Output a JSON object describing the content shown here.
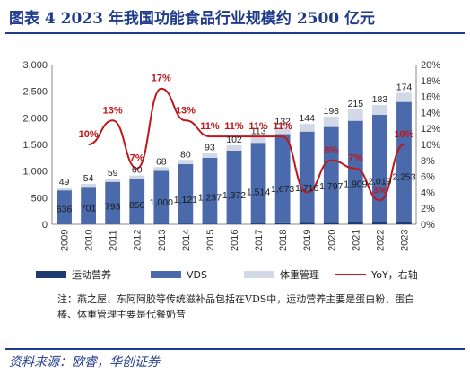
{
  "figure": {
    "title": "图表 4   2023 年我国功能食品行业规模约 2500 亿元",
    "note": "注：燕之屋、东阿阿胶等传统滋补品包括在VDS中，运动营养主要是蛋白粉、蛋白棒、体重管理主要是代餐奶昔",
    "source": "资料来源：欧睿，华创证券"
  },
  "colors": {
    "sports": "#1f3a6e",
    "vds": "#4a6aab",
    "weight": "#d3d8e6",
    "yoy": "#c0171c",
    "title": "#1f3b8c"
  },
  "chart_data": {
    "type": "bar",
    "stacked": true,
    "categories": [
      "2009",
      "2010",
      "2011",
      "2012",
      "2013",
      "2014",
      "2015",
      "2016",
      "2017",
      "2018",
      "2019",
      "2020",
      "2021",
      "2022",
      "2023"
    ],
    "series": [
      {
        "name": "运动营养",
        "values": [
          2,
          3,
          4,
          5,
          6,
          8,
          10,
          12,
          16,
          20,
          25,
          30,
          35,
          40,
          45
        ]
      },
      {
        "name": "VDS",
        "values": [
          636,
          701,
          793,
          850,
          1000,
          1121,
          1237,
          1372,
          1514,
          1673,
          1716,
          1797,
          1909,
          2019,
          2253
        ]
      },
      {
        "name": "体重管理",
        "values": [
          49,
          54,
          59,
          60,
          68,
          80,
          93,
          102,
          113,
          132,
          144,
          198,
          215,
          183,
          174
        ]
      }
    ],
    "line": {
      "name": "YoY，右轴",
      "values": [
        null,
        10,
        13,
        7,
        17,
        13,
        11,
        11,
        11,
        11,
        4,
        8,
        7,
        3,
        10
      ],
      "labels": [
        "",
        "10%",
        "13%",
        "7%",
        "17%",
        "13%",
        "11%",
        "11%",
        "11%",
        "11%",
        "",
        "8%",
        "7%",
        "3%",
        "10%"
      ]
    },
    "vds_labels": [
      "636",
      "701",
      "793",
      "850",
      "1,000",
      "1,121",
      "1,237",
      "1,372",
      "1,514",
      "1,673",
      "1,716",
      "1,797",
      "1,909",
      "2,019",
      "2,253"
    ],
    "weight_labels": [
      "49",
      "54",
      "59",
      "60",
      "68",
      "80",
      "93",
      "102",
      "113",
      "132",
      "144",
      "198",
      "215",
      "183",
      "174"
    ],
    "ylim": [
      0,
      3000
    ],
    "y2lim": [
      0,
      20
    ],
    "yticks": [
      "0",
      "500",
      "1,000",
      "1,500",
      "2,000",
      "2,500",
      "3,000"
    ],
    "y2ticks": [
      "0%",
      "2%",
      "4%",
      "6%",
      "8%",
      "10%",
      "12%",
      "14%",
      "16%",
      "18%",
      "20%"
    ],
    "legend": [
      "运动营养",
      "VDS",
      "体重管理",
      "YoY，右轴"
    ],
    "legend_position": "bottom"
  }
}
